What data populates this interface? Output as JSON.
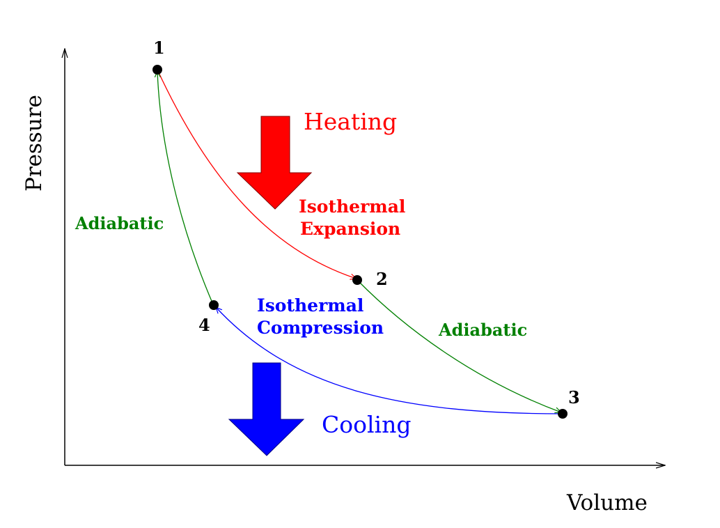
{
  "axes": {
    "y_label": "Pressure",
    "x_label": "Volume"
  },
  "points": [
    {
      "id": "1",
      "label": "1"
    },
    {
      "id": "2",
      "label": "2"
    },
    {
      "id": "3",
      "label": "3"
    },
    {
      "id": "4",
      "label": "4"
    }
  ],
  "processes": {
    "isothermal_expansion": {
      "line1": "Isothermal",
      "line2": "Expansion",
      "color": "#ff0000"
    },
    "isothermal_compression": {
      "line1": "Isothermal",
      "line2": "Compression",
      "color": "#0000ff"
    },
    "adiabatic_left": {
      "label": "Adiabatic",
      "color": "#008000"
    },
    "adiabatic_right": {
      "label": "Adiabatic",
      "color": "#008000"
    }
  },
  "heat": {
    "heating_label": "Heating",
    "heating_color": "#ff0000",
    "cooling_label": "Cooling",
    "cooling_color": "#0000ff"
  }
}
